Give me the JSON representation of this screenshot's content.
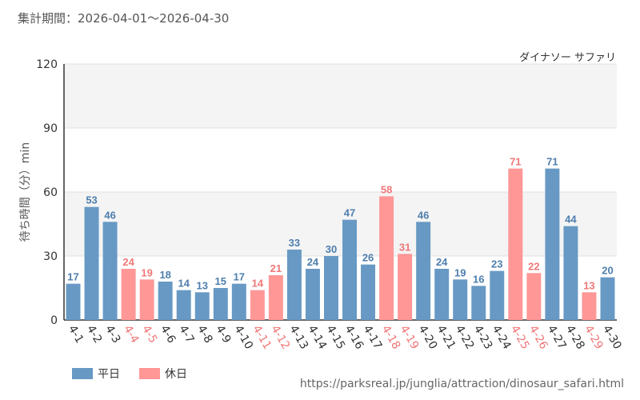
{
  "header": {
    "period": "集計期間：2026-04-01～2026-04-30",
    "subtitle": "ダイナソー サファリ"
  },
  "footer": {
    "source": "https://parksreal.jp/junglia/attraction/dinosaur_safari.html"
  },
  "colors": {
    "weekday": "#6899c4",
    "holiday": "#ff9797",
    "weekday_text": "#4e7ead",
    "holiday_text": "#f07878"
  },
  "chart_data": {
    "type": "bar",
    "ylabel": "待ち時間（分）min",
    "ylim": [
      0,
      120
    ],
    "yticks": [
      0,
      30,
      60,
      90,
      120
    ],
    "grid": true,
    "legend_position": "bottom-left",
    "legend": [
      {
        "name": "平日",
        "category": "weekday"
      },
      {
        "name": "休日",
        "category": "holiday"
      }
    ],
    "categories": [
      "4-1",
      "4-2",
      "4-3",
      "4-4",
      "4-5",
      "4-6",
      "4-7",
      "4-8",
      "4-9",
      "4-10",
      "4-11",
      "4-12",
      "4-13",
      "4-14",
      "4-15",
      "4-16",
      "4-17",
      "4-18",
      "4-19",
      "4-20",
      "4-21",
      "4-22",
      "4-23",
      "4-24",
      "4-25",
      "4-26",
      "4-27",
      "4-28",
      "4-29",
      "4-30"
    ],
    "values": [
      17,
      53,
      46,
      24,
      19,
      18,
      14,
      13,
      15,
      17,
      14,
      21,
      33,
      24,
      30,
      47,
      26,
      58,
      31,
      46,
      24,
      19,
      16,
      23,
      71,
      22,
      71,
      44,
      13,
      20
    ],
    "day_type": [
      "weekday",
      "weekday",
      "weekday",
      "holiday",
      "holiday",
      "weekday",
      "weekday",
      "weekday",
      "weekday",
      "weekday",
      "holiday",
      "holiday",
      "weekday",
      "weekday",
      "weekday",
      "weekday",
      "weekday",
      "holiday",
      "holiday",
      "weekday",
      "weekday",
      "weekday",
      "weekday",
      "weekday",
      "holiday",
      "holiday",
      "weekday",
      "weekday",
      "holiday",
      "weekday"
    ]
  }
}
